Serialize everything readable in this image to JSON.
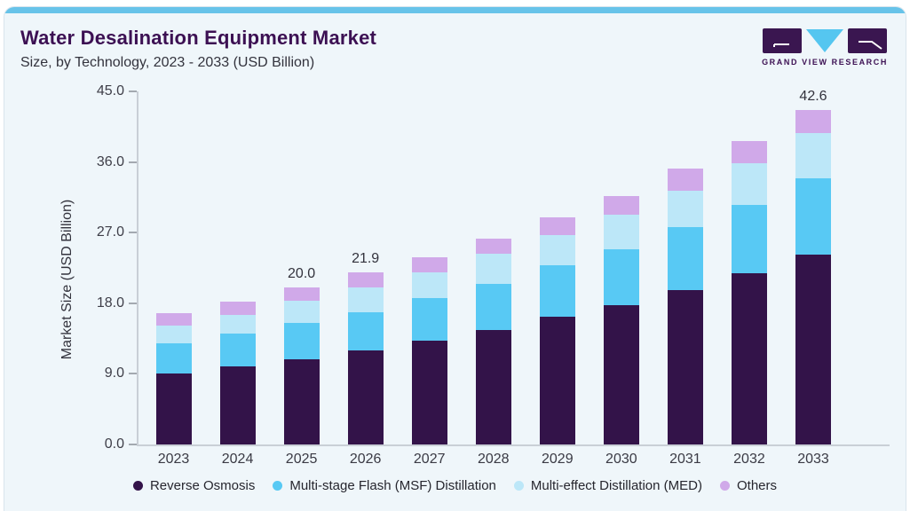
{
  "header": {
    "title": "Water Desalination Equipment Market",
    "subtitle": "Size, by Technology, 2023 - 2033 (USD Billion)"
  },
  "logo": {
    "text": "GRAND VIEW RESEARCH"
  },
  "theme": {
    "brand_purple": "#3c1053",
    "accent_blue": "#67c3e9",
    "card_background": "#eff6fa",
    "logo_mark_purple": "#3a1650",
    "logo_triangle_blue": "#55c6f0"
  },
  "chart_data": {
    "type": "bar",
    "stacked": true,
    "title": "Water Desalination Equipment Market Size, by Technology, 2023 - 2033 (USD Billion)",
    "xlabel": "",
    "ylabel": "Market Size (USD Billion)",
    "ylim": [
      0,
      45
    ],
    "ytick_labels": [
      "0.0",
      "9.0",
      "18.0",
      "27.0",
      "36.0",
      "45.0"
    ],
    "yticks": [
      0,
      9,
      18,
      27,
      36,
      45
    ],
    "grid": false,
    "legend_position": "bottom",
    "categories": [
      "2023",
      "2024",
      "2025",
      "2026",
      "2027",
      "2028",
      "2029",
      "2030",
      "2031",
      "2032",
      "2033"
    ],
    "series": [
      {
        "name": "Reverse Osmosis",
        "color": "#331349",
        "values": [
          9.0,
          9.9,
          10.8,
          12.0,
          13.2,
          14.6,
          16.3,
          17.7,
          19.7,
          21.8,
          24.2
        ]
      },
      {
        "name": "Multi-stage Flash (MSF) Distillation",
        "color": "#58c9f4",
        "values": [
          3.9,
          4.2,
          4.7,
          4.9,
          5.5,
          5.9,
          6.5,
          7.2,
          8.0,
          8.7,
          9.7
        ]
      },
      {
        "name": "Multi-effect Distillation (MED)",
        "color": "#bce7f8",
        "values": [
          2.2,
          2.4,
          2.8,
          3.1,
          3.2,
          3.8,
          3.9,
          4.4,
          4.6,
          5.4,
          5.8
        ]
      },
      {
        "name": "Others",
        "color": "#d0a9e9",
        "values": [
          1.6,
          1.7,
          1.7,
          1.9,
          2.0,
          1.9,
          2.2,
          2.4,
          2.9,
          2.8,
          2.9
        ]
      }
    ],
    "totals_labeled": {
      "2025": "20.0",
      "2026": "21.9",
      "2033": "42.6"
    }
  }
}
